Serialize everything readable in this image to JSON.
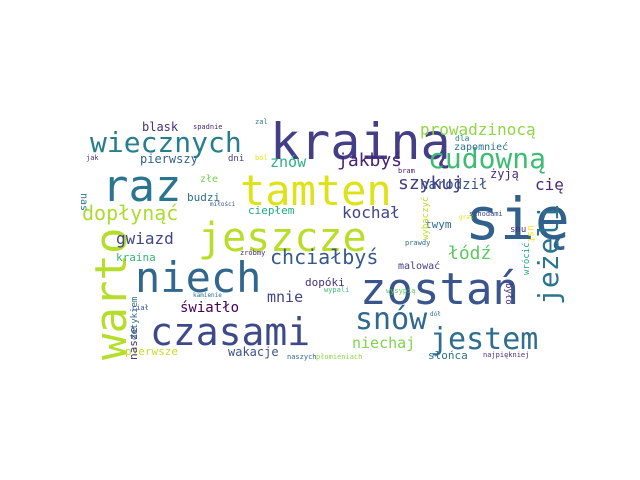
{
  "words": [
    {
      "text": "się",
      "color": "#31608d"
    },
    {
      "text": "krainą",
      "color": "#433e85"
    },
    {
      "text": "tamten",
      "color": "#dde318"
    },
    {
      "text": "raz",
      "color": "#2a768e"
    },
    {
      "text": "jeszcze",
      "color": "#b8de29"
    },
    {
      "text": "niech",
      "color": "#31668e"
    },
    {
      "text": "zostań",
      "color": "#3a548c"
    },
    {
      "text": "warto",
      "color": "#b5de2b"
    },
    {
      "text": "czasami",
      "color": "#3e4989"
    },
    {
      "text": "wiecznych",
      "color": "#277f8e"
    },
    {
      "text": "cudowną",
      "color": "#3fbc73"
    },
    {
      "text": "snów",
      "color": "#31688e"
    },
    {
      "text": "jestem",
      "color": "#2e6e8e"
    },
    {
      "text": "jeżeli",
      "color": "#2b748e"
    },
    {
      "text": "prowadzinocą",
      "color": "#8fd744"
    },
    {
      "text": "chciałbyś",
      "color": "#38598c"
    },
    {
      "text": "dopłynąć",
      "color": "#addc30"
    },
    {
      "text": "szykuj",
      "color": "#443983"
    },
    {
      "text": "jakbyś",
      "color": "#482475"
    },
    {
      "text": "znów",
      "color": "#2ab07f"
    },
    {
      "text": "kochał",
      "color": "#404688"
    },
    {
      "text": "gwiazd",
      "color": "#404688"
    },
    {
      "text": "mnie",
      "color": "#414487"
    },
    {
      "text": "niechaj",
      "color": "#7fd34e"
    },
    {
      "text": "łódź",
      "color": "#5ec962"
    },
    {
      "text": "cię",
      "color": "#482878"
    },
    {
      "text": "narodził",
      "color": "#39558c"
    },
    {
      "text": "światło",
      "color": "#440154"
    },
    {
      "text": "blask",
      "color": "#46327e"
    },
    {
      "text": "pierwszy",
      "color": "#33638d"
    },
    {
      "text": "żyją",
      "color": "#472c7a"
    },
    {
      "text": "budzi",
      "color": "#2d708e"
    },
    {
      "text": "ciepłem",
      "color": "#22a884"
    },
    {
      "text": "twym",
      "color": "#306a8e"
    },
    {
      "text": "dopóki",
      "color": "#46327e"
    },
    {
      "text": "kraina",
      "color": "#35b779"
    },
    {
      "text": "wakacje",
      "color": "#3b528b"
    },
    {
      "text": "słońca",
      "color": "#2c738e"
    },
    {
      "text": "pierwsze",
      "color": "#c2df23"
    },
    {
      "text": "nasze",
      "color": "#46337f"
    },
    {
      "text": "złe",
      "color": "#7ad151"
    },
    {
      "text": "dni",
      "color": "#424086"
    },
    {
      "text": "nas",
      "color": "#2c718e"
    },
    {
      "text": "zapomnieć",
      "color": "#2c718e"
    },
    {
      "text": "dla",
      "color": "#26828e"
    },
    {
      "text": "snu",
      "color": "#472d7b"
    },
    {
      "text": "wybaczyć",
      "color": "#b8de29"
    },
    {
      "text": "ust",
      "color": "#fde725"
    },
    {
      "text": "wrócić",
      "color": "#22a884"
    },
    {
      "text": "było",
      "color": "#472f7d"
    },
    {
      "text": "malować",
      "color": "#423f85"
    },
    {
      "text": "dotykiem",
      "color": "#306a8e"
    },
    {
      "text": "spadnie",
      "color": "#482878"
    },
    {
      "text": "miłości",
      "color": "#3b528b"
    },
    {
      "text": "zal",
      "color": "#2a788e"
    },
    {
      "text": "ból",
      "color": "#e5e419"
    },
    {
      "text": "jak",
      "color": "#453581"
    },
    {
      "text": "bram",
      "color": "#481a6c"
    },
    {
      "text": "wysypią",
      "color": "#5ec962"
    },
    {
      "text": "kamienie",
      "color": "#2d708e"
    },
    {
      "text": "zróbmy",
      "color": "#482374"
    },
    {
      "text": "prawdy",
      "color": "#2f6c8e"
    },
    {
      "text": "wypali",
      "color": "#3fbc73"
    },
    {
      "text": "ciał",
      "color": "#3b528b"
    },
    {
      "text": "naszych",
      "color": "#32648e"
    },
    {
      "text": "płomieniach",
      "color": "#90d743"
    },
    {
      "text": "dół",
      "color": "#31688e"
    },
    {
      "text": "najpiękniej",
      "color": "#46327e"
    },
    {
      "text": "grał",
      "color": "#e2e418"
    },
    {
      "text": "schodami",
      "color": "#3e4a89"
    }
  ]
}
